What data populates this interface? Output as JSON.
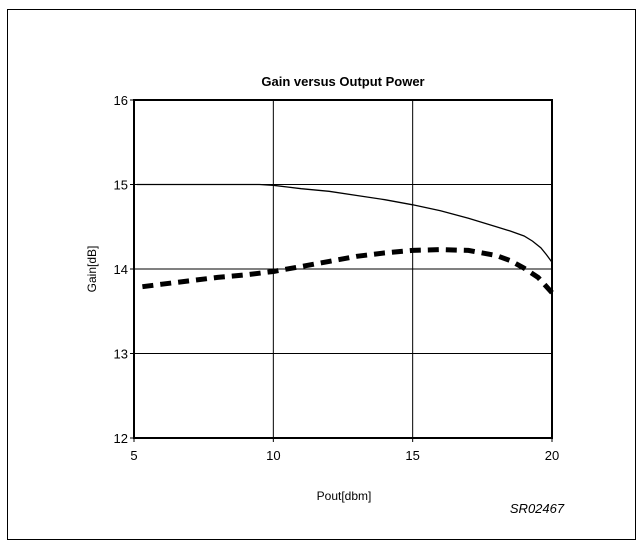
{
  "chart_data": {
    "type": "line",
    "title": "Gain versus Output Power",
    "xlabel": "Pout[dbm]",
    "ylabel": "Gain[dB]",
    "xlim": [
      5,
      20
    ],
    "ylim": [
      12,
      16
    ],
    "xticks": [
      5,
      10,
      15,
      20
    ],
    "yticks": [
      12,
      13,
      14,
      15,
      16
    ],
    "grid": true,
    "figure_code": "SR02467",
    "series": [
      {
        "style": "solid",
        "color": "#000000",
        "x": [
          5.1,
          6,
          7,
          8,
          9,
          9.5,
          10,
          10.5,
          11,
          12,
          13,
          14,
          15,
          16,
          17,
          18,
          18.5,
          19,
          19.3,
          19.6,
          19.8,
          20
        ],
        "y": [
          15.0,
          15.0,
          15.0,
          15.0,
          15.0,
          15.0,
          14.99,
          14.97,
          14.95,
          14.92,
          14.87,
          14.82,
          14.76,
          14.69,
          14.6,
          14.5,
          14.45,
          14.39,
          14.33,
          14.25,
          14.17,
          14.08
        ]
      },
      {
        "style": "dashed",
        "color": "#000000",
        "x": [
          5.3,
          6,
          7,
          8,
          9,
          10,
          11,
          12,
          13,
          14,
          15,
          16,
          17,
          18,
          18.5,
          19,
          19.5,
          20
        ],
        "y": [
          13.79,
          13.82,
          13.86,
          13.9,
          13.93,
          13.97,
          14.03,
          14.09,
          14.15,
          14.19,
          14.22,
          14.23,
          14.22,
          14.16,
          14.1,
          14.01,
          13.9,
          13.72
        ]
      }
    ]
  }
}
